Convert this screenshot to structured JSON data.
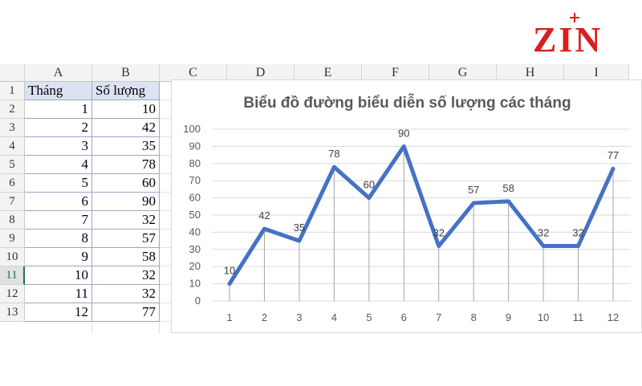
{
  "logo": {
    "text": "ZIN",
    "color": "#d7201f"
  },
  "sheet": {
    "columns": [
      "A",
      "B",
      "C",
      "D",
      "E",
      "F",
      "G",
      "H",
      "I"
    ],
    "rows": [
      "1",
      "2",
      "3",
      "4",
      "5",
      "6",
      "7",
      "8",
      "9",
      "10",
      "11",
      "12",
      "13"
    ],
    "active_row": "11",
    "header": [
      "Tháng",
      "Số lượng"
    ],
    "data": [
      [
        1,
        10
      ],
      [
        2,
        42
      ],
      [
        3,
        35
      ],
      [
        4,
        78
      ],
      [
        5,
        60
      ],
      [
        6,
        90
      ],
      [
        7,
        32
      ],
      [
        8,
        57
      ],
      [
        9,
        58
      ],
      [
        10,
        32
      ],
      [
        11,
        32
      ],
      [
        12,
        77
      ]
    ]
  },
  "chart_data": {
    "type": "line",
    "title": "Biểu đồ đường biểu diễn số lượng các tháng",
    "categories": [
      "1",
      "2",
      "3",
      "4",
      "5",
      "6",
      "7",
      "8",
      "9",
      "10",
      "11",
      "12"
    ],
    "values": [
      10,
      42,
      35,
      78,
      60,
      90,
      32,
      57,
      58,
      32,
      32,
      77
    ],
    "ylim": [
      0,
      100
    ],
    "yticks": [
      0,
      10,
      20,
      30,
      40,
      50,
      60,
      70,
      80,
      90,
      100
    ],
    "data_labels": true,
    "grid": "horizontal",
    "line_color": "#4472c4"
  }
}
